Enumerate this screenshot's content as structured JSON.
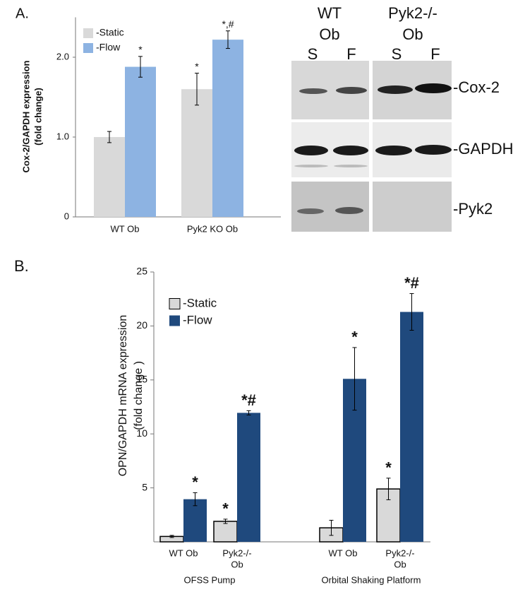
{
  "chart_data": [
    {
      "type": "bar",
      "panel_label": "A.",
      "ylabel": [
        "Cox-2/GAPDH expression",
        "(fold change)"
      ],
      "categories": [
        [
          "WT Ob"
        ],
        [
          "Pyk2 KO Ob"
        ]
      ],
      "ylim": [
        0,
        2.5
      ],
      "yticks": [
        0,
        {
          "value": 1,
          "label": "1.0"
        },
        {
          "value": 2,
          "label": "2.0"
        }
      ],
      "series": [
        {
          "name": "-Static",
          "color": "#d9d9d9",
          "values": [
            1.0,
            1.6
          ],
          "errors": [
            0.07,
            0.2
          ],
          "labels": [
            null,
            "*"
          ]
        },
        {
          "name": "-Flow",
          "color": "#8db3e2",
          "values": [
            1.88,
            2.22
          ],
          "errors": [
            0.13,
            0.11
          ],
          "labels": [
            "*",
            "*,#"
          ]
        }
      ]
    },
    {
      "type": "bar",
      "panel_label": "B.",
      "ylabel": [
        "OPN/GAPDH mRNA expression",
        "(fold change )"
      ],
      "categories": [
        [
          "WT Ob"
        ],
        [
          "Pyk2-/-",
          "Ob"
        ],
        [
          "WT Ob"
        ],
        [
          "Pyk2-/-",
          "Ob"
        ]
      ],
      "groups": [
        "OFSS Pump",
        "Orbital Shaking Platform"
      ],
      "ylim": [
        0,
        25
      ],
      "yticks": [
        5,
        10,
        15,
        20,
        25
      ],
      "series": [
        {
          "name": "-Static",
          "color": "#d9d9d9",
          "edgecolor": "#000000",
          "values": [
            0.5,
            1.9,
            1.3,
            4.9
          ],
          "errors": [
            0.1,
            0.2,
            0.7,
            1.0
          ],
          "labels": [
            null,
            "*",
            null,
            "*"
          ]
        },
        {
          "name": "-Flow",
          "color": "#1f497d",
          "values": [
            3.95,
            11.95,
            15.1,
            21.3
          ],
          "errors": [
            0.6,
            0.2,
            2.9,
            1.7
          ],
          "labels": [
            "*",
            "*#",
            "*",
            "*#"
          ]
        }
      ]
    }
  ],
  "blot": {
    "headers": [
      [
        "WT",
        "Ob"
      ],
      [
        "Pyk2-/-",
        "Ob"
      ]
    ],
    "lanes": [
      "S",
      "F",
      "S",
      "F"
    ],
    "rows": [
      "-Cox-2",
      "-GAPDH",
      "-Pyk2"
    ]
  }
}
